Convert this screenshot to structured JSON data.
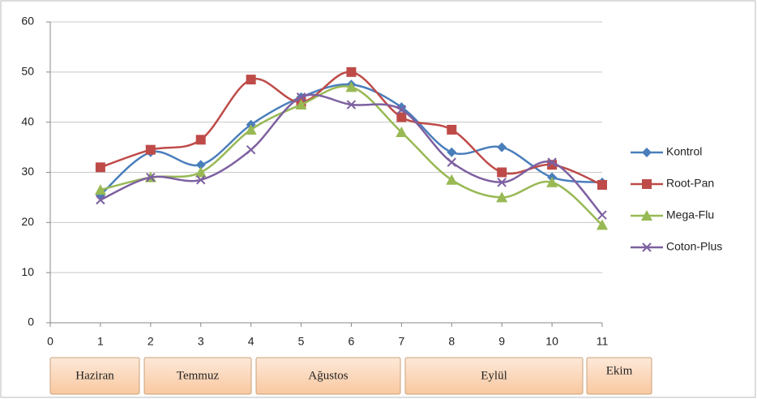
{
  "chart_data": {
    "type": "line",
    "x": [
      1,
      2,
      3,
      4,
      5,
      6,
      7,
      8,
      9,
      10,
      11
    ],
    "xlim": [
      0,
      11
    ],
    "xticks": [
      0,
      1,
      2,
      3,
      4,
      5,
      6,
      7,
      8,
      9,
      10,
      11
    ],
    "ylim": [
      0,
      60
    ],
    "yticks": [
      0,
      10,
      20,
      30,
      40,
      50,
      60
    ],
    "grid": true,
    "legend": "right",
    "x_groups": [
      "Haziran",
      "Temmuz",
      "Ağustos",
      "Eylül",
      "Ekim"
    ],
    "series": [
      {
        "name": "Kontrol",
        "color": "#4a7ebb",
        "marker": "diamond",
        "values": [
          25.5,
          34,
          31.5,
          39.5,
          45,
          47.5,
          43,
          34,
          35,
          29,
          28
        ]
      },
      {
        "name": "Root-Pan",
        "color": "#be4b48",
        "marker": "square",
        "values": [
          31,
          34.5,
          36.5,
          48.5,
          44,
          50,
          41,
          38.5,
          30,
          31.5,
          27.5
        ]
      },
      {
        "name": "Mega-Flu",
        "color": "#98b954",
        "marker": "triangle",
        "values": [
          26.5,
          29,
          30,
          38.5,
          43.5,
          47,
          38,
          28.5,
          25,
          28,
          19.5
        ]
      },
      {
        "name": "Coton-Plus",
        "color": "#7d60a0",
        "marker": "x",
        "values": [
          24.5,
          29,
          28.5,
          34.5,
          45,
          43.5,
          42.5,
          32,
          28,
          32,
          21.5
        ]
      }
    ]
  }
}
